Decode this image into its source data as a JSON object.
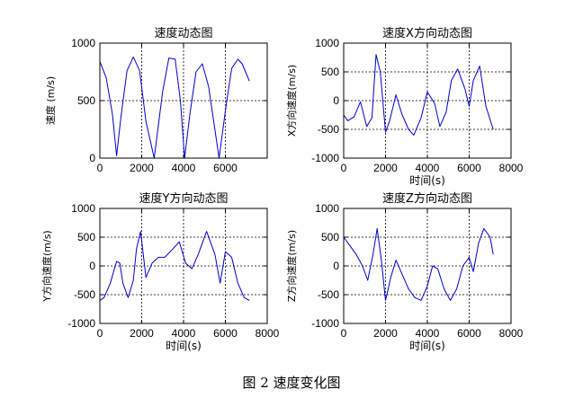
{
  "figure_caption": "图 2  速度变化图",
  "colors": {
    "line": "#0000cc",
    "axes": "#000000",
    "grid": "#000000"
  },
  "chart_data": [
    {
      "type": "line",
      "title": "速度动态图",
      "xlabel": "",
      "ylabel": "速度 (m/s)",
      "xlim": [
        0,
        8000
      ],
      "ylim": [
        0,
        1000
      ],
      "xticks": [
        0,
        2000,
        4000,
        6000
      ],
      "yticks": [
        0,
        500,
        1000
      ],
      "xtick_labels": [
        "0",
        "2000",
        "4000",
        "6000"
      ],
      "ytick_labels": [
        "0",
        "500",
        "1000"
      ],
      "grid": true,
      "series": [
        {
          "x": [
            0,
            300,
            600,
            800,
            1000,
            1300,
            1600,
            1900,
            2200,
            2600,
            3000,
            3300,
            3600,
            3850,
            4050,
            4300,
            4600,
            4900,
            5200,
            5700,
            6050,
            6300,
            6600,
            6800,
            7150
          ],
          "y": [
            840,
            700,
            380,
            20,
            350,
            760,
            880,
            760,
            320,
            0,
            580,
            870,
            860,
            500,
            0,
            380,
            750,
            820,
            620,
            0,
            480,
            780,
            860,
            820,
            670
          ]
        }
      ]
    },
    {
      "type": "line",
      "title": "速度X方向动态图",
      "xlabel": "时间(s)",
      "ylabel": "X方向速度(m/s)",
      "xlim": [
        0,
        8000
      ],
      "ylim": [
        -1000,
        1000
      ],
      "xticks": [
        0,
        2000,
        4000,
        6000,
        8000
      ],
      "yticks": [
        -1000,
        -500,
        0,
        500,
        1000
      ],
      "xtick_labels": [
        "0",
        "2000",
        "4000",
        "6000",
        "8000"
      ],
      "ytick_labels": [
        "-1000",
        "-500",
        "0",
        "500",
        "1000"
      ],
      "grid": true,
      "series": [
        {
          "x": [
            0,
            200,
            500,
            800,
            1100,
            1350,
            1550,
            1750,
            2000,
            2200,
            2500,
            2800,
            3100,
            3350,
            3700,
            4000,
            4350,
            4600,
            4900,
            5150,
            5450,
            5800,
            6000,
            6200,
            6500,
            6800,
            7150
          ],
          "y": [
            -250,
            -350,
            -280,
            -20,
            -450,
            -300,
            800,
            500,
            -550,
            -350,
            100,
            -250,
            -500,
            -600,
            -300,
            150,
            -50,
            -450,
            -200,
            350,
            550,
            200,
            -100,
            350,
            600,
            -100,
            -500
          ]
        }
      ]
    },
    {
      "type": "line",
      "title": "速度Y方向动态图",
      "xlabel": "时间(s)",
      "ylabel": "Y方向速度(m/s)",
      "xlim": [
        0,
        8000
      ],
      "ylim": [
        -1000,
        1000
      ],
      "xticks": [
        0,
        2000,
        4000,
        6000,
        8000
      ],
      "yticks": [
        -1000,
        -500,
        0,
        500,
        1000
      ],
      "xtick_labels": [
        "0",
        "2000",
        "4000",
        "6000",
        "8000"
      ],
      "ytick_labels": [
        "-1000",
        "-500",
        "0",
        "500",
        "1000"
      ],
      "grid": true,
      "series": [
        {
          "x": [
            0,
            200,
            500,
            800,
            950,
            1100,
            1350,
            1600,
            1750,
            1950,
            2200,
            2500,
            2800,
            3100,
            3500,
            3800,
            4100,
            4400,
            4700,
            5100,
            5500,
            5750,
            6000,
            6300,
            6600,
            6900,
            7150
          ],
          "y": [
            -600,
            -550,
            -300,
            80,
            50,
            -300,
            -550,
            -250,
            300,
            600,
            -200,
            50,
            150,
            150,
            300,
            420,
            50,
            -50,
            200,
            600,
            200,
            -300,
            250,
            150,
            -300,
            -550,
            -600
          ]
        }
      ]
    },
    {
      "type": "line",
      "title": "速度Z方向动态图",
      "xlabel": "时间(s)",
      "ylabel": "Z方向速度(m/s)",
      "xlim": [
        0,
        8000
      ],
      "ylim": [
        -1000,
        1000
      ],
      "xticks": [
        0,
        2000,
        4000,
        6000,
        8000
      ],
      "yticks": [
        -1000,
        -500,
        0,
        500,
        1000
      ],
      "xtick_labels": [
        "0",
        "2000",
        "4000",
        "6000",
        "8000"
      ],
      "ytick_labels": [
        "-1000",
        "-500",
        "0",
        "500",
        "1000"
      ],
      "grid": true,
      "series": [
        {
          "x": [
            0,
            300,
            600,
            900,
            1150,
            1400,
            1600,
            1800,
            2000,
            2250,
            2500,
            2800,
            3100,
            3400,
            3700,
            4000,
            4250,
            4500,
            4800,
            5100,
            5400,
            5700,
            6000,
            6200,
            6450,
            6700,
            7000,
            7150
          ],
          "y": [
            500,
            350,
            200,
            0,
            -250,
            200,
            650,
            100,
            -600,
            -200,
            100,
            -150,
            -400,
            -550,
            -600,
            -350,
            0,
            -50,
            -400,
            -600,
            -400,
            0,
            150,
            -100,
            400,
            650,
            500,
            200
          ]
        }
      ]
    }
  ]
}
